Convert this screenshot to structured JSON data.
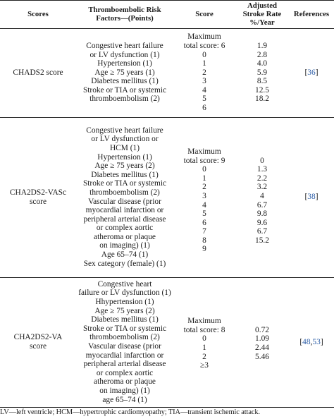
{
  "header": {
    "scores": "Scores",
    "risk_factors": [
      "Thromboembolic Risk",
      "Factors—(Points)"
    ],
    "score": "Score",
    "stroke_rate": [
      "Adjusted",
      "Stroke Rate",
      "%/Year"
    ],
    "references": "References"
  },
  "rows": [
    {
      "name": "CHADS2 score",
      "factors": [
        "Congestive heart failure",
        "or LV dysfunction (1)",
        "Hypertension (1)",
        "Age ≥ 75 years (1)",
        "Diabetes mellitus (1)",
        "Stroke or TIA or systemic",
        "thromboembolism (2)"
      ],
      "scores": [
        "Maximum",
        "total score: 6",
        "0",
        "1",
        "2",
        "3",
        "4",
        "5",
        "6"
      ],
      "rates": [
        "",
        "1.9",
        "2.8",
        "4.0",
        "5.9",
        "8.5",
        "12.5",
        "18.2",
        ""
      ],
      "ref_open": "[",
      "refs": [
        "36"
      ],
      "ref_close": "]"
    },
    {
      "name_lines": [
        "CHA2DS2-VASc",
        "score"
      ],
      "factors": [
        "Congestive heart failure",
        "or LV dysfunction or",
        "HCM (1)",
        "Hypertension (1)",
        "Age ≥ 75 years (2)",
        "Diabetes mellitus (1)",
        "Stroke or TIA or systemic",
        "thromboembolism (2)",
        "Vascular disease (prior",
        "myocardial infarction or",
        "peripheral arterial disease",
        "or complex aortic",
        "atheroma or plaque",
        "on imaging) (1)",
        "Age 65–74 (1)",
        "Sex category (female) (1)"
      ],
      "scores": [
        "Maximum",
        "total score: 9",
        "0",
        "1",
        "2",
        "3",
        "4",
        "5",
        "6",
        "7",
        "8",
        "9"
      ],
      "rates": [
        "",
        "0",
        "1.3",
        "2.2",
        "3.2",
        "4",
        "6.7",
        "9.8",
        "9.6",
        "6.7",
        "15.2",
        ""
      ],
      "ref_open": "[",
      "refs": [
        "38"
      ],
      "ref_close": "]"
    },
    {
      "name_lines": [
        "CHA2DS2-VA",
        "score"
      ],
      "factors": [
        "Congestive heart",
        "failure or LV dysfunction (1)",
        "Hhypertension (1)",
        "Age ≥ 75 years (2)",
        "Diabetes mellitus (1)",
        "Stroke or TIA or systemic",
        "thromboembolism (2)",
        "Vascular disease (prior",
        "myocardial infarction or",
        "peripheral arterial disease",
        "or complex aortic",
        "atheroma or plaque",
        "on imaging) (1)",
        "age 65–74 (1)"
      ],
      "scores": [
        "Maximum",
        "total score: 8",
        "0",
        "1",
        "2",
        "≥3"
      ],
      "rates": [
        "",
        "0.72",
        "1.09",
        "2.44",
        "5.46",
        ""
      ],
      "ref_open": "[",
      "refs": [
        "48",
        "53"
      ],
      "ref_sep": ",",
      "ref_close": "]"
    }
  ],
  "footnote": "LV—left ventricle; HCM—hypertrophic cardiomyopathy; TIA—transient ischemic attack."
}
